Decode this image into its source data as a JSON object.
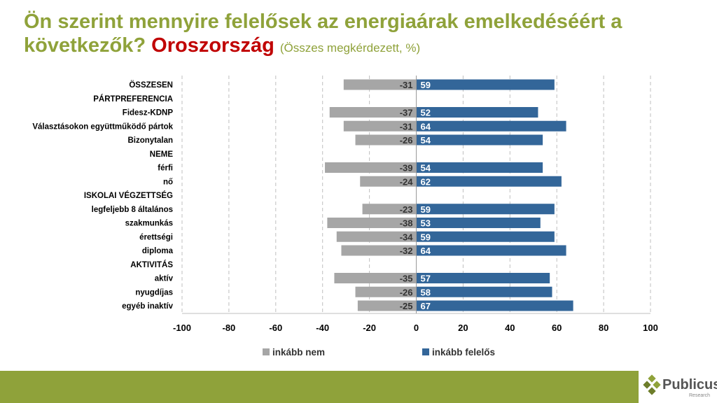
{
  "title": {
    "main": "Ön szerint mennyire felelősek az energiaárak emelkedéséért a következők?",
    "highlight": "Oroszország",
    "sub": "(Összes megkérdezett, %)"
  },
  "chart_data": {
    "type": "bar",
    "orientation": "horizontal-diverging",
    "categories": [
      "ÖSSZESEN",
      "PÁRTPREFERENCIA",
      "Fidesz-KDNP",
      "Választásokon együttműködő pártok",
      "Bizonytalan",
      "NEME",
      "férfi",
      "nő",
      "ISKOLAI VÉGZETTSÉG",
      "legfeljebb 8 általános",
      "szakmunkás",
      "érettségi",
      "diploma",
      "AKTIVITÁS",
      "aktív",
      "nyugdíjas",
      "egyéb inaktív"
    ],
    "series": [
      {
        "name": "inkább nem",
        "color": "#a6a6a6",
        "values": [
          -31,
          null,
          -37,
          -31,
          -26,
          null,
          -39,
          -24,
          null,
          -23,
          -38,
          -34,
          -32,
          null,
          -35,
          -26,
          -25
        ]
      },
      {
        "name": "inkább felelős",
        "color": "#336699",
        "values": [
          59,
          null,
          52,
          64,
          54,
          null,
          54,
          62,
          null,
          59,
          53,
          59,
          64,
          null,
          57,
          58,
          67
        ]
      }
    ],
    "xlim": [
      -100,
      100
    ],
    "xticks": [
      -100,
      -80,
      -60,
      -40,
      -20,
      0,
      20,
      40,
      60,
      80,
      100
    ],
    "legend": "bottom",
    "grid": true
  },
  "logo": {
    "name": "Publicus",
    "sub": "Research"
  }
}
